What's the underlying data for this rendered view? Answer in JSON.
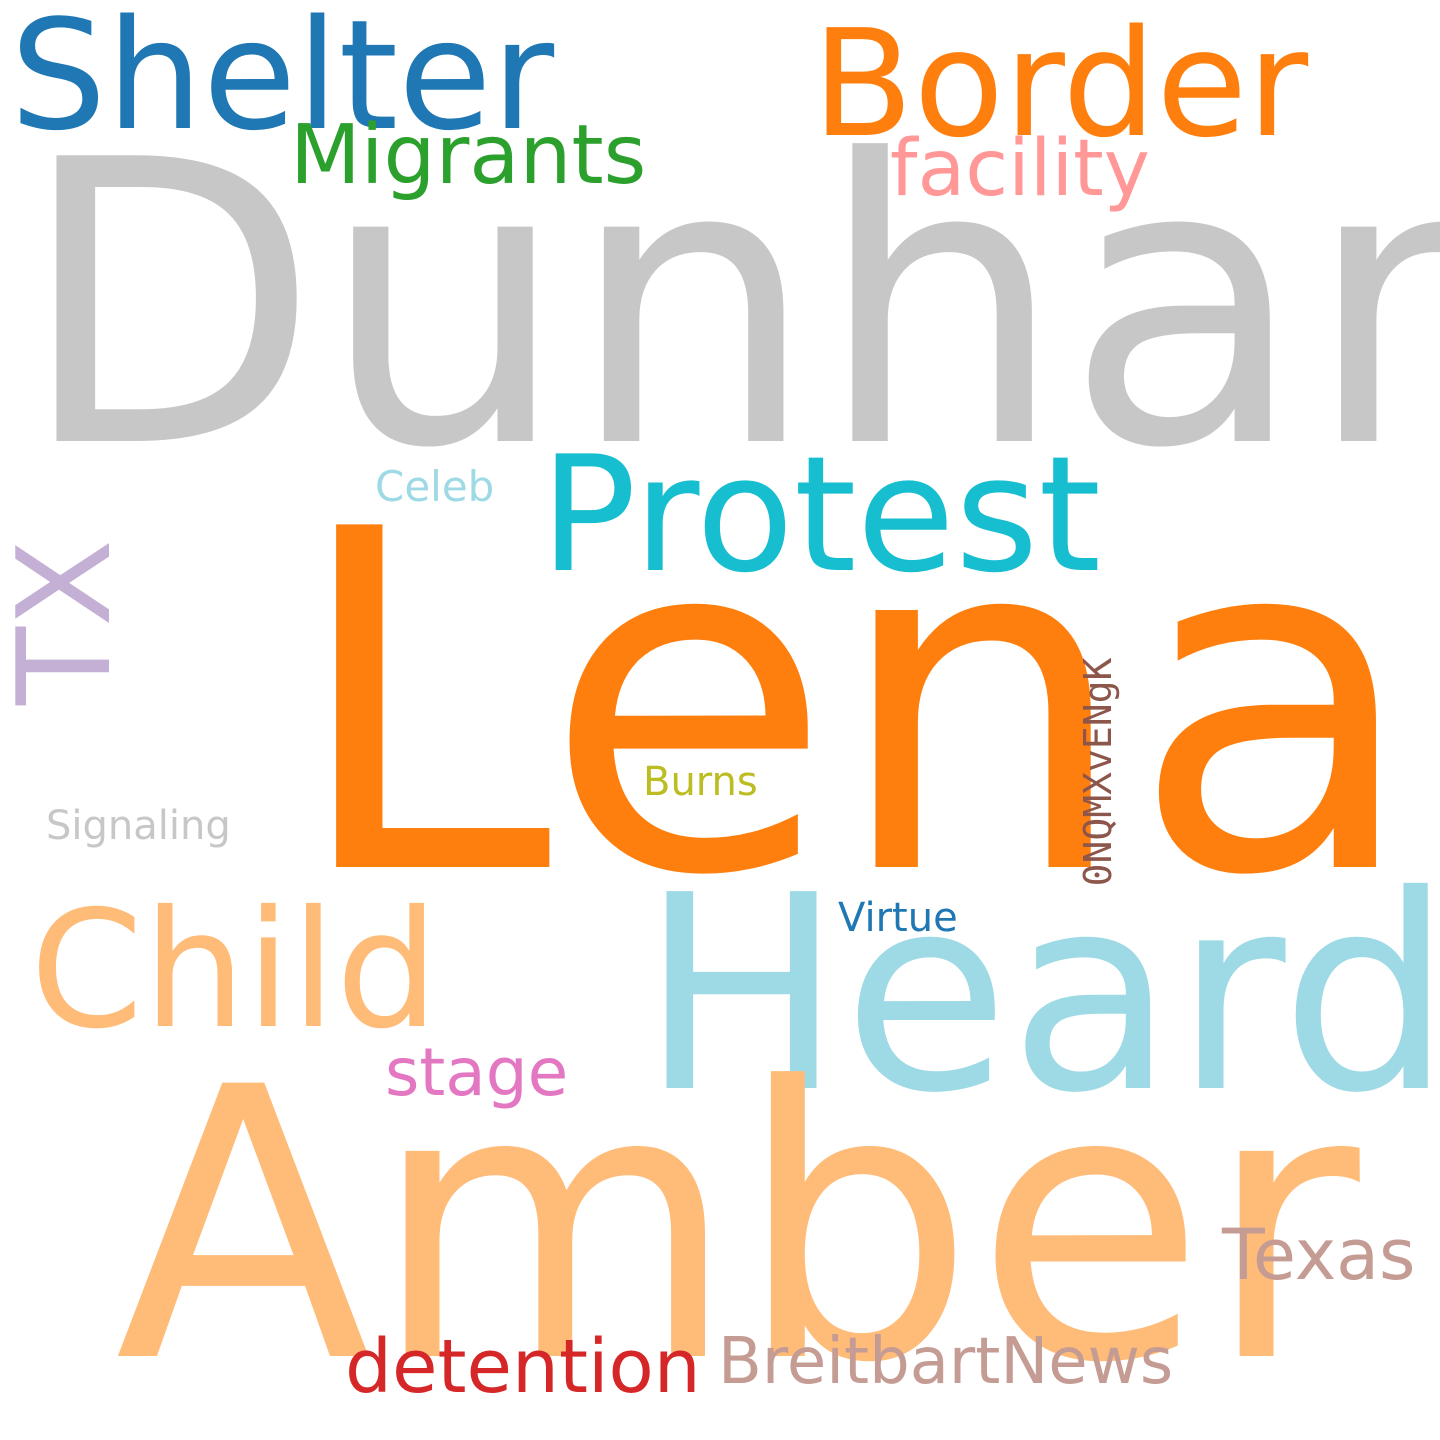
{
  "words": {
    "dunham": {
      "text": "Dunham",
      "color": "#c7c7c7"
    },
    "lena": {
      "text": "Lena",
      "color": "#ff7f0e"
    },
    "amber": {
      "text": "Amber",
      "color": "#ffbb78"
    },
    "heard": {
      "text": "Heard",
      "color": "#9edae5"
    },
    "shelter": {
      "text": "Shelter",
      "color": "#1f77b4"
    },
    "border": {
      "text": "Border",
      "color": "#ff7f0e"
    },
    "protest": {
      "text": "Protest",
      "color": "#17becf"
    },
    "child": {
      "text": "Child",
      "color": "#ffbb78"
    },
    "migrants": {
      "text": "Migrants",
      "color": "#2ca02c"
    },
    "facility": {
      "text": "facility",
      "color": "#ff9896"
    },
    "tx": {
      "text": "TX",
      "color": "#c5b0d5"
    },
    "texas": {
      "text": "Texas",
      "color": "#c49c94"
    },
    "breitbart": {
      "text": "BreitbartNews",
      "color": "#c49c94"
    },
    "detention": {
      "text": "detention",
      "color": "#d62728"
    },
    "stage": {
      "text": "stage",
      "color": "#e377c2"
    },
    "celeb": {
      "text": "Celeb",
      "color": "#9edae5"
    },
    "burns": {
      "text": "Burns",
      "color": "#bcbd22"
    },
    "virtue": {
      "text": "Virtue",
      "color": "#1f77b4"
    },
    "signaling": {
      "text": "Signaling",
      "color": "#c7c7c7"
    },
    "code": {
      "text": "0NQMXvENgK",
      "color": "#8c564b"
    }
  }
}
